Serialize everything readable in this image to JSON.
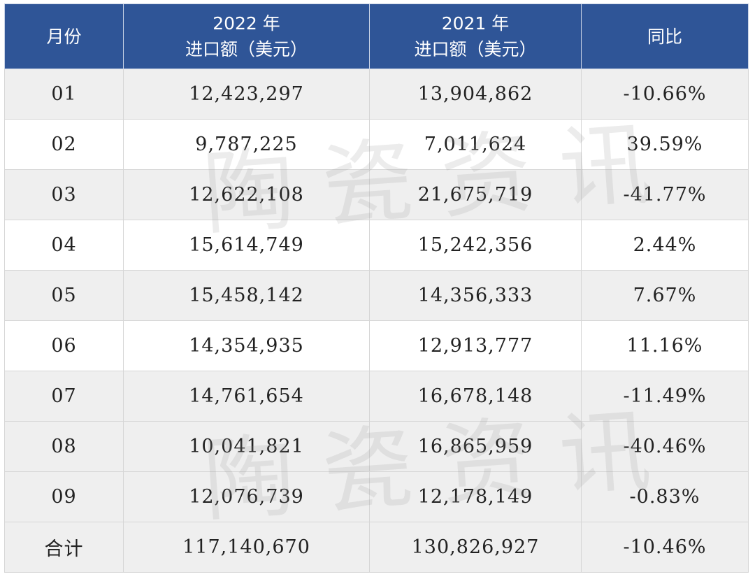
{
  "colors": {
    "header_bg": "#2f5597",
    "header_text": "#ffffff",
    "row_shade": "#efefef"
  },
  "watermark": "陶瓷资讯",
  "table": {
    "headers": [
      {
        "line1": "月份",
        "line2": ""
      },
      {
        "line1": "2022 年",
        "line2": "进口额（美元）"
      },
      {
        "line1": "2021 年",
        "line2": "进口额（美元）"
      },
      {
        "line1": "同比",
        "line2": ""
      }
    ],
    "rows": [
      {
        "month": "01",
        "y2022": "12,423,297",
        "y2021": "13,904,862",
        "yoy": "-10.66%",
        "shaded": true
      },
      {
        "month": "02",
        "y2022": "9,787,225",
        "y2021": "7,011,624",
        "yoy": "39.59%",
        "shaded": false
      },
      {
        "month": "03",
        "y2022": "12,622,108",
        "y2021": "21,675,719",
        "yoy": "-41.77%",
        "shaded": true
      },
      {
        "month": "04",
        "y2022": "15,614,749",
        "y2021": "15,242,356",
        "yoy": "2.44%",
        "shaded": false
      },
      {
        "month": "05",
        "y2022": "15,458,142",
        "y2021": "14,356,333",
        "yoy": "7.67%",
        "shaded": true
      },
      {
        "month": "06",
        "y2022": "14,354,935",
        "y2021": "12,913,777",
        "yoy": "11.16%",
        "shaded": false
      },
      {
        "month": "07",
        "y2022": "14,761,654",
        "y2021": "16,678,148",
        "yoy": "-11.49%",
        "shaded": true
      },
      {
        "month": "08",
        "y2022": "10,041,821",
        "y2021": "16,865,959",
        "yoy": "-40.46%",
        "shaded": true
      },
      {
        "month": "09",
        "y2022": "12,076,739",
        "y2021": "12,178,149",
        "yoy": "-0.83%",
        "shaded": true
      },
      {
        "month": "合计",
        "y2022": "117,140,670",
        "y2021": "130,826,927",
        "yoy": "-10.46%",
        "shaded": true
      }
    ]
  }
}
